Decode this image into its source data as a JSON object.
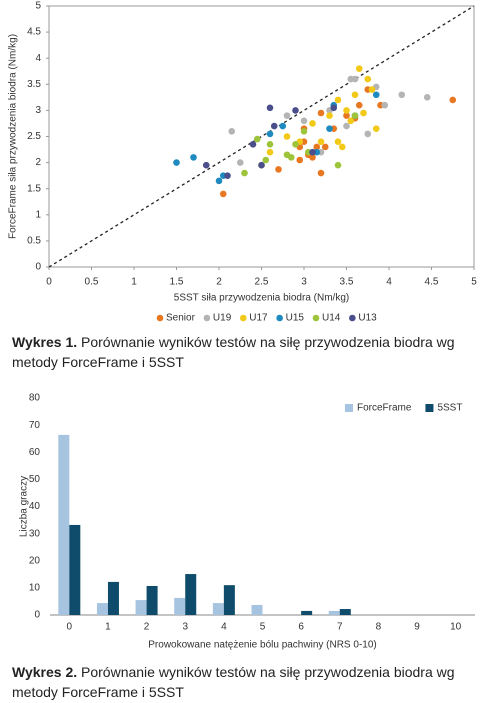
{
  "chart_data": [
    {
      "type": "scatter",
      "xlabel": "5SST siła przywodzenia biodra (Nm/kg)",
      "ylabel": "ForceFrame siła przywodzenia biodra (Nm/kg)",
      "xlim": [
        0,
        5
      ],
      "ylim": [
        0,
        5
      ],
      "xticks": [
        0,
        0.5,
        1,
        1.5,
        2,
        2.5,
        3,
        3.5,
        4,
        4.5,
        5
      ],
      "yticks": [
        0,
        0.5,
        1,
        1.5,
        2,
        2.5,
        3,
        3.5,
        4,
        4.5,
        5
      ],
      "diagonal": true,
      "legend": "bottom",
      "series": [
        {
          "name": "Senior",
          "color": "#e87722",
          "x": [
            2.05,
            2.7,
            2.95,
            2.95,
            3.0,
            3.0,
            3.1,
            3.15,
            3.2,
            3.2,
            3.25,
            3.5,
            3.6,
            3.65,
            3.75,
            3.9,
            4.75,
            3.35,
            3.05
          ],
          "values": [
            1.4,
            1.87,
            2.3,
            2.05,
            2.4,
            2.65,
            2.1,
            2.3,
            1.8,
            2.95,
            2.3,
            2.9,
            2.85,
            3.1,
            3.4,
            3.1,
            3.2,
            2.65,
            2.15
          ]
        },
        {
          "name": "U19",
          "color": "#b4b4b4",
          "x": [
            2.15,
            2.25,
            2.8,
            3.0,
            3.2,
            3.3,
            3.55,
            3.6,
            3.75,
            3.85,
            3.95,
            4.15,
            4.45,
            3.5
          ],
          "values": [
            2.6,
            2.0,
            2.9,
            2.8,
            2.2,
            3.0,
            3.6,
            3.6,
            2.55,
            3.45,
            3.1,
            3.3,
            3.25,
            2.7
          ]
        },
        {
          "name": "U17",
          "color": "#f2c916",
          "x": [
            2.6,
            2.8,
            2.95,
            3.1,
            3.2,
            3.3,
            3.4,
            3.4,
            3.45,
            3.55,
            3.6,
            3.65,
            3.75,
            3.8,
            3.85,
            3.7,
            3.5
          ],
          "values": [
            2.2,
            2.5,
            2.4,
            2.75,
            2.4,
            2.9,
            3.2,
            2.4,
            2.3,
            2.8,
            3.3,
            3.8,
            3.6,
            3.4,
            2.65,
            2.95,
            3.0
          ]
        },
        {
          "name": "U15",
          "color": "#1f8ac0",
          "x": [
            1.5,
            1.7,
            2.0,
            2.05,
            2.6,
            2.75,
            3.3,
            3.35,
            3.6,
            3.85,
            3.15
          ],
          "values": [
            2.0,
            2.1,
            1.65,
            1.75,
            2.55,
            2.7,
            2.65,
            3.1,
            2.9,
            3.3,
            2.2
          ]
        },
        {
          "name": "U14",
          "color": "#9dc43a",
          "x": [
            2.3,
            2.45,
            2.5,
            2.55,
            2.6,
            2.85,
            2.9,
            3.0,
            3.4,
            3.6,
            3.05,
            2.8
          ],
          "values": [
            1.8,
            2.45,
            1.95,
            2.05,
            2.35,
            2.1,
            2.35,
            2.6,
            1.95,
            2.9,
            2.2,
            2.15
          ]
        },
        {
          "name": "U13",
          "color": "#4a4f8c",
          "x": [
            1.85,
            2.1,
            2.4,
            2.5,
            2.6,
            2.65,
            2.9,
            3.1,
            3.35
          ],
          "values": [
            1.95,
            1.75,
            2.35,
            1.95,
            3.05,
            2.7,
            3.0,
            2.2,
            3.05
          ]
        }
      ]
    },
    {
      "type": "bar",
      "xlabel": "Prowokowane natężenie bólu pachwiny (NRS 0-10)",
      "ylabel": "Liczba graczy",
      "categories": [
        "0",
        "1",
        "2",
        "3",
        "4",
        "5",
        "6",
        "7",
        "8",
        "9",
        "10"
      ],
      "ylim": [
        0,
        80
      ],
      "yticks": [
        0,
        10,
        20,
        30,
        40,
        50,
        60,
        70,
        80
      ],
      "legend": "upper right",
      "series": [
        {
          "name": "ForceFrame",
          "color": "#a6c4e0",
          "values": [
            66.4,
            4.4,
            5.5,
            6.3,
            4.4,
            3.7,
            0,
            1.5,
            0,
            0,
            0
          ]
        },
        {
          "name": "5SST",
          "color": "#0f4c6b",
          "values": [
            33.2,
            12.2,
            10.7,
            15.1,
            11,
            0,
            1.5,
            2.2,
            0,
            0,
            0
          ]
        }
      ]
    }
  ],
  "captions": [
    {
      "label": "Wykres 1.",
      "text": "Porównanie wyników testów na siłę przywodzenia biodra wg metody ForceFrame i 5SST"
    },
    {
      "label": "Wykres 2.",
      "text": "Porównanie wyników testów na siłę przywodzenia biodra wg metody ForceFrame i 5SST"
    }
  ]
}
